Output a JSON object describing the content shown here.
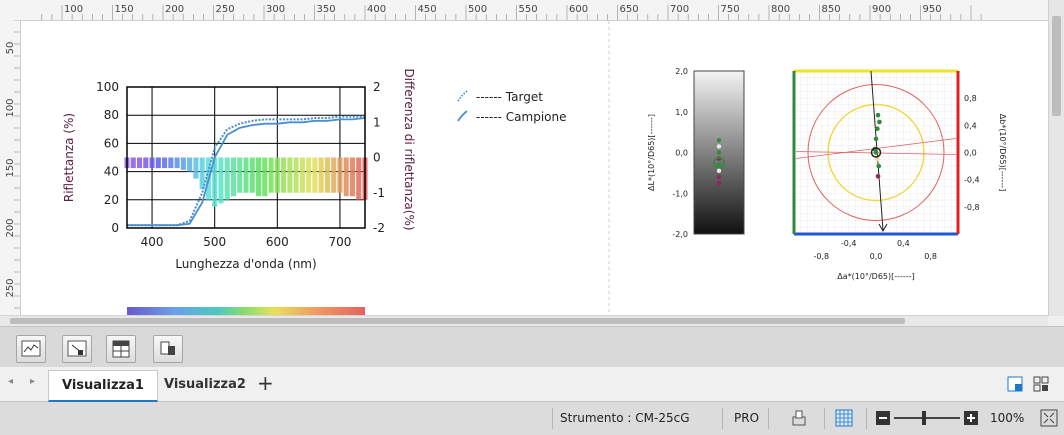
{
  "ruler": {
    "top_ticks": [
      "100",
      "150",
      "200",
      "250",
      "300",
      "350",
      "400",
      "450",
      "500",
      "550",
      "600",
      "650",
      "700",
      "750",
      "800",
      "850",
      "900",
      "950"
    ],
    "left_ticks": [
      "50",
      "100",
      "150",
      "200",
      "250"
    ]
  },
  "spectral_chart": {
    "type": "bar+line",
    "title": "",
    "xlabel": "Lunghezza d'onda (nm)",
    "ylabel_left": "Riflettanza (%)",
    "ylabel_right": "Differenza di riflettanza(%)",
    "x_ticks": [
      "400",
      "500",
      "600",
      "700"
    ],
    "y_left_ticks": [
      "0",
      "20",
      "40",
      "60",
      "80",
      "100"
    ],
    "y_right_ticks": [
      "-2",
      "-1",
      "0",
      "1",
      "2"
    ],
    "xlim": [
      360,
      740
    ],
    "ylim_left": [
      0,
      100
    ],
    "ylim_right": [
      -2,
      2
    ],
    "grid": true,
    "legend": [
      {
        "name": "------ Target",
        "color": "#4a8fd0",
        "style": "dotted"
      },
      {
        "name": "------ Campione",
        "color": "#4a8fd0",
        "style": "solid"
      }
    ],
    "series_target": {
      "x": [
        360,
        400,
        440,
        460,
        480,
        500,
        520,
        540,
        560,
        580,
        600,
        620,
        640,
        660,
        680,
        700,
        720,
        740
      ],
      "y": [
        2,
        2,
        2,
        5,
        25,
        57,
        70,
        74,
        76,
        77,
        77,
        77,
        77,
        78,
        78,
        79,
        79,
        79
      ]
    },
    "series_campione": {
      "x": [
        360,
        400,
        440,
        460,
        480,
        500,
        520,
        540,
        560,
        580,
        600,
        620,
        640,
        660,
        680,
        700,
        720,
        740
      ],
      "y": [
        2,
        2,
        2,
        3,
        18,
        50,
        66,
        71,
        73,
        74,
        74,
        75,
        75,
        76,
        76,
        77,
        77,
        78
      ]
    },
    "difference_bars": {
      "x": [
        360,
        370,
        380,
        390,
        400,
        410,
        420,
        430,
        440,
        450,
        460,
        470,
        480,
        490,
        500,
        510,
        520,
        530,
        540,
        550,
        560,
        570,
        580,
        590,
        600,
        610,
        620,
        630,
        640,
        650,
        660,
        670,
        680,
        690,
        700,
        710,
        720,
        730,
        740
      ],
      "y": [
        -0.3,
        -0.3,
        -0.3,
        -0.3,
        -0.3,
        -0.3,
        -0.3,
        -0.3,
        -0.3,
        -0.35,
        -0.4,
        -0.6,
        -0.9,
        -1.2,
        -1.4,
        -1.3,
        -1.2,
        -1.1,
        -1.0,
        -1.0,
        -1.0,
        -1.1,
        -1.1,
        -1.0,
        -1.0,
        -1.0,
        -1.0,
        -1.0,
        -1.0,
        -1.0,
        -1.0,
        -1.0,
        -1.0,
        -1.0,
        -1.0,
        -1.1,
        -1.1,
        -1.2,
        -1.2
      ]
    }
  },
  "lightness_chart": {
    "ylabel": "ΔL*(10°/D65)[------]",
    "y_ticks": [
      "2,0",
      "1,0",
      "0,0",
      "-1,0",
      "-2,0"
    ],
    "ylim": [
      -2,
      2
    ],
    "points": [
      0.3,
      0.15,
      0.0,
      -0.15,
      -0.3,
      -0.45,
      -0.6,
      -0.75
    ]
  },
  "ab_chart": {
    "xlabel": "Δa*(10°/D65)[------]",
    "ylabel": "Δb*(10°/D65)[------]",
    "x_ticks": [
      "-0,8",
      "-0,4",
      "0,0",
      "0,4",
      "0,8"
    ],
    "y_ticks": [
      "0,8",
      "0,4",
      "0,0",
      "-0,4",
      "-0,8"
    ],
    "lim": [
      -1.2,
      1.2
    ],
    "points": [
      {
        "a": 0.03,
        "b": 0.55
      },
      {
        "a": 0.05,
        "b": 0.45
      },
      {
        "a": 0.02,
        "b": 0.35
      },
      {
        "a": 0.0,
        "b": 0.2
      },
      {
        "a": -0.02,
        "b": 0.05
      },
      {
        "a": 0.0,
        "b": 0.0
      },
      {
        "a": 0.02,
        "b": -0.1
      },
      {
        "a": 0.04,
        "b": -0.2
      },
      {
        "a": 0.03,
        "b": -0.35
      }
    ]
  },
  "toolbar": {
    "buttons": [
      "spectral-graph-icon",
      "color-diff-graph-icon",
      "table-icon",
      "layout-icon"
    ]
  },
  "tabs": {
    "items": [
      "Visualizza1",
      "Visualizza2"
    ],
    "add": "+",
    "active": 0
  },
  "status": {
    "instrument": "Strumento : CM-25cG",
    "mode": "PRO",
    "zoom": "100%",
    "zoom_level": 0.45
  },
  "colors": {
    "accent": "#1e78c8",
    "curve": "#4a8fd0",
    "lab_green": "#2f8a3a",
    "lab_red": "#e02020",
    "lab_yellow": "#f2e12a",
    "lab_blue": "#1f55d6"
  }
}
